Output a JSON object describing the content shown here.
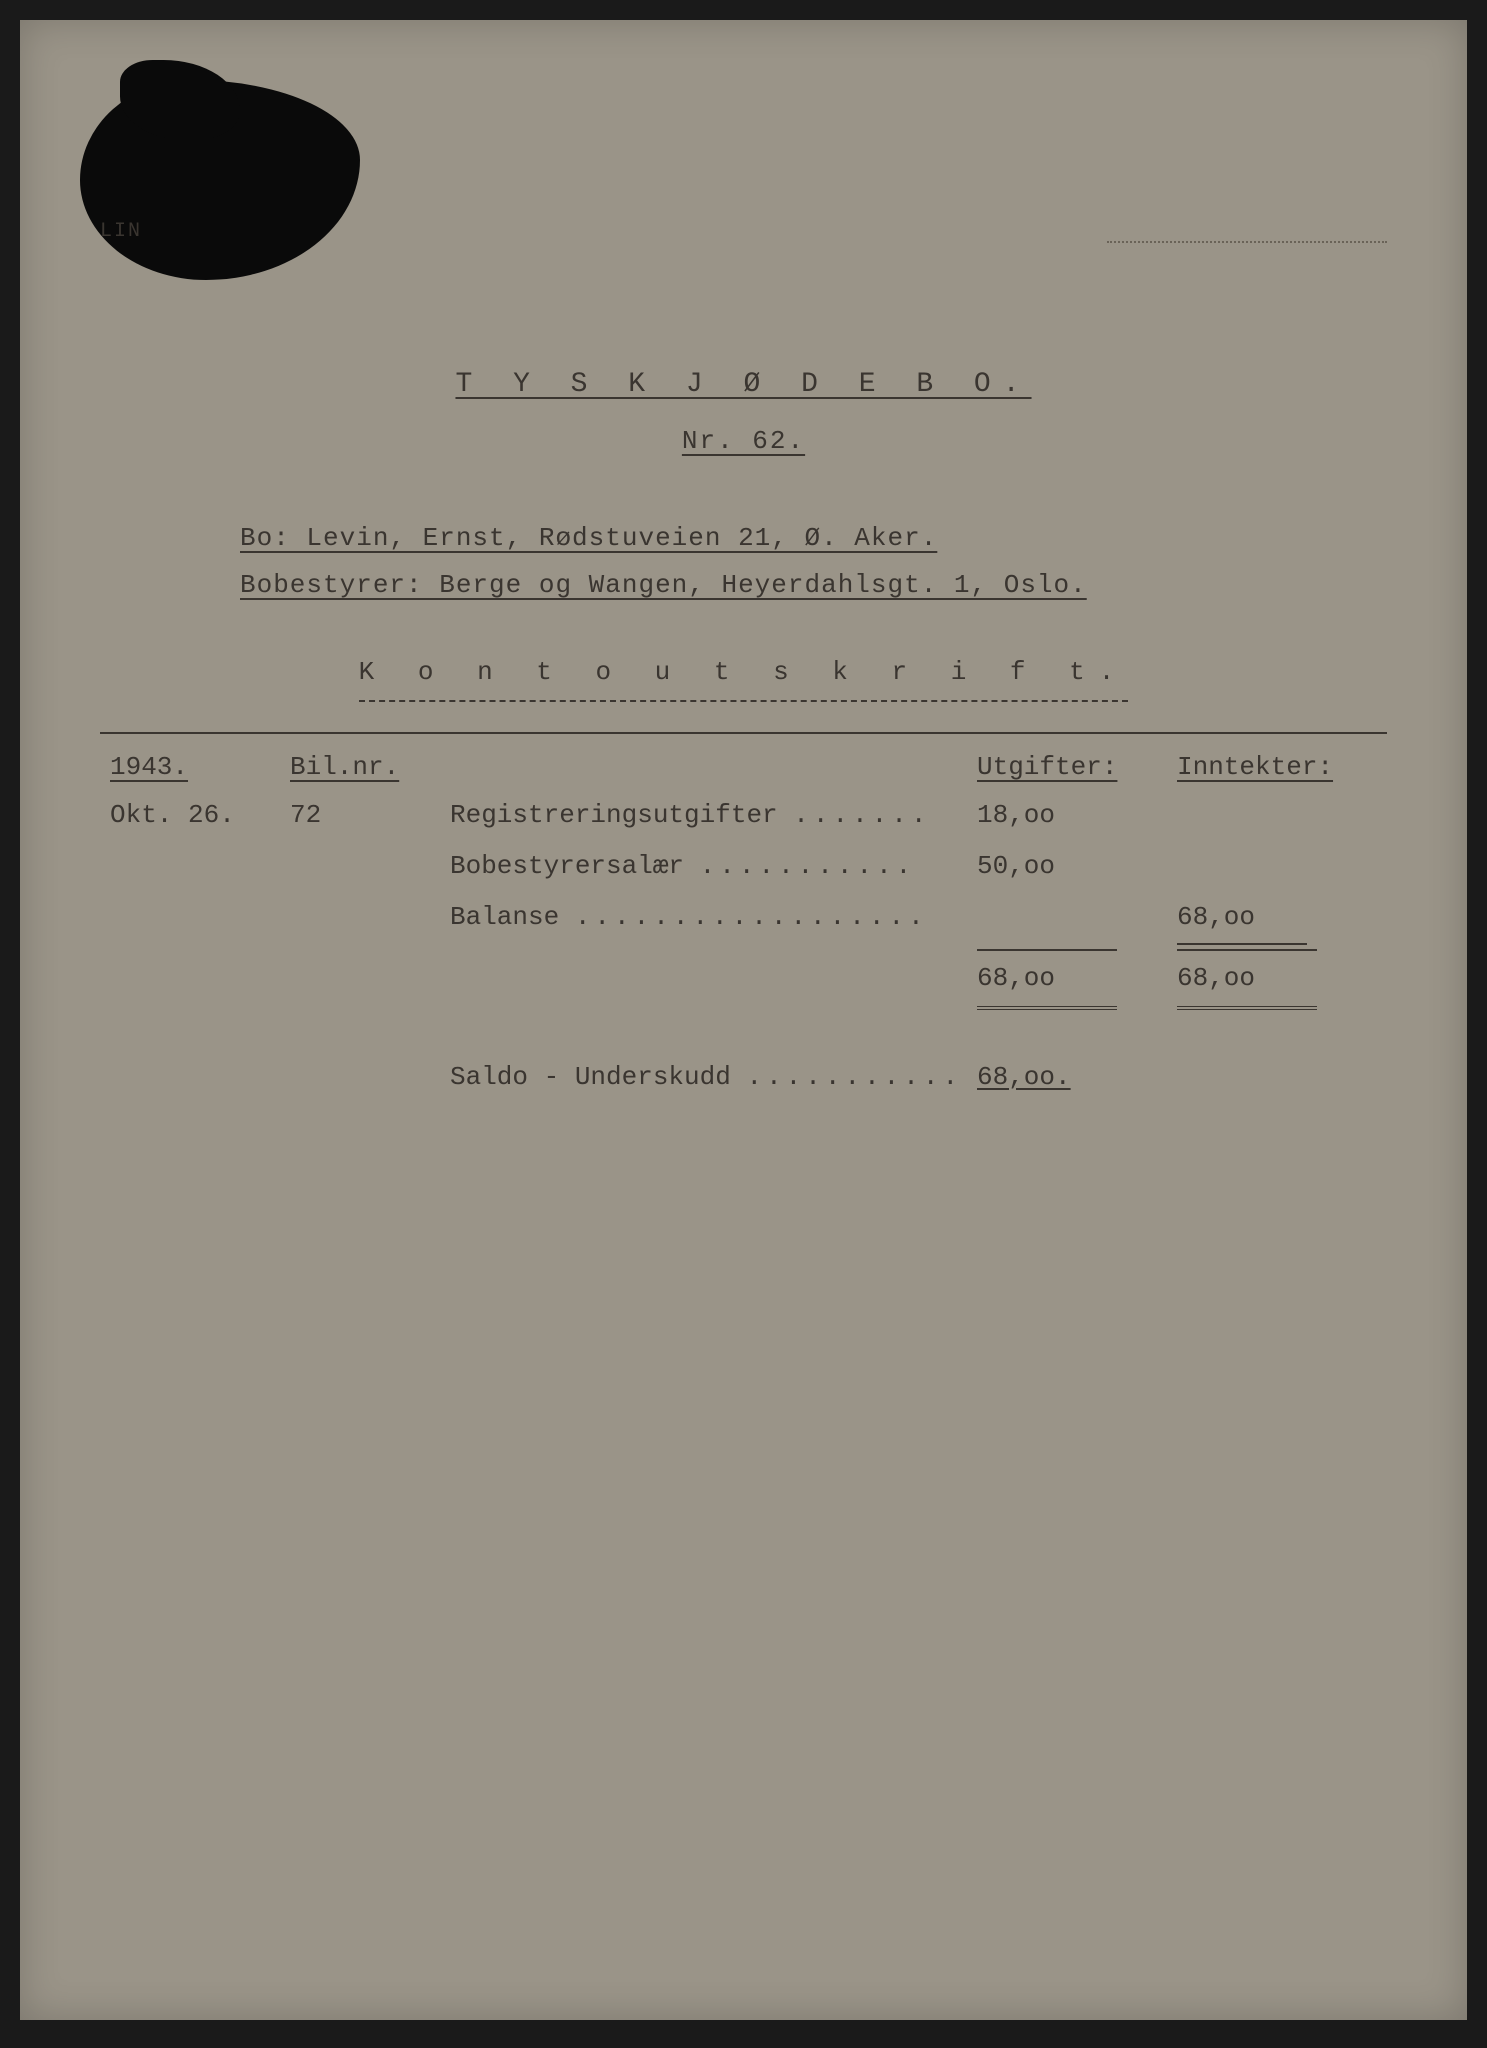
{
  "header": {
    "left_marker": "LIN",
    "right_marker": ""
  },
  "title": {
    "main": "T Y S K  J Ø D E B O.",
    "sub": "Nr. 62."
  },
  "info": {
    "bo": "Bo: Levin, Ernst, Rødstuveien 21, Ø. Aker.",
    "bobestyrer": "Bobestyrer: Berge og Wangen, Heyerdahlsgt. 1, Oslo."
  },
  "section": "K o n t o u t s k r i f t.",
  "columns": {
    "year": "1943.",
    "bilag": "Bil.nr.",
    "utgifter": "Utgifter:",
    "inntekter": "Inntekter:"
  },
  "rows": [
    {
      "date": "Okt. 26.",
      "bilag": "72",
      "desc": "Registreringsutgifter",
      "dots": ".......",
      "utgifter": "18,oo",
      "inntekter": ""
    },
    {
      "date": "",
      "bilag": "",
      "desc": "Bobestyrersalær",
      "dots": "...........",
      "utgifter": "50,oo",
      "inntekter": ""
    },
    {
      "date": "",
      "bilag": "",
      "desc": "Balanse",
      "dots": "..................",
      "utgifter": "",
      "inntekter": "68,oo"
    }
  ],
  "totals": {
    "utgifter": "68,oo",
    "inntekter": "68,oo"
  },
  "saldo": {
    "desc": "Saldo - Underskudd",
    "dots": "...........",
    "value": "68,oo."
  },
  "colors": {
    "page_bg": "#9a9488",
    "text": "#3a3530",
    "outer_bg": "#1a1a1a"
  }
}
